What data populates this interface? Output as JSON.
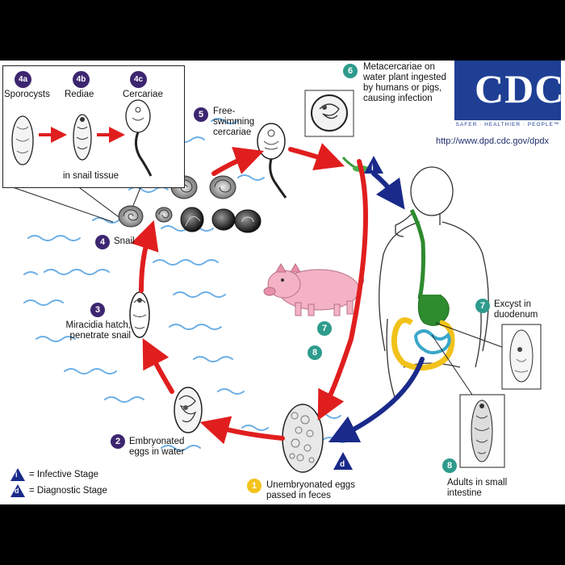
{
  "logo": {
    "text": "CDC",
    "tagline": "SAFER · HEALTHIER · PEOPLE™"
  },
  "url": "http://www.dpd.cdc.gov/dpdx",
  "inset": {
    "a": {
      "num": "4a",
      "label": "Sporocysts"
    },
    "b": {
      "num": "4b",
      "label": "Rediae"
    },
    "c": {
      "num": "4c",
      "label": "Cercariae"
    },
    "caption": "in snail tissue"
  },
  "steps": {
    "s1": {
      "num": "1",
      "label": "Unembryonated eggs passed in feces"
    },
    "s2": {
      "num": "2",
      "label": "Embryonated eggs in water"
    },
    "s3": {
      "num": "3",
      "label": "Miracidia hatch, penetrate snail"
    },
    "s4": {
      "num": "4",
      "label": "Snail"
    },
    "s5": {
      "num": "5",
      "label": "Free-swimming cercariae"
    },
    "s6": {
      "num": "6",
      "label": "Metacercariae on water plant ingested by humans or pigs, causing infection"
    },
    "s7": {
      "num": "7",
      "label": "Excyst in duodenum"
    },
    "s8": {
      "num": "8",
      "label": "Adults in small intestine"
    },
    "pig7": {
      "num": "7"
    },
    "pig8": {
      "num": "8"
    }
  },
  "legend": {
    "infective": {
      "symbol": "i",
      "label": "= Infective Stage"
    },
    "diagnostic": {
      "symbol": "d",
      "label": "= Diagnostic Stage"
    }
  },
  "markers": {
    "infective": "i",
    "diagnostic": "d"
  },
  "colors": {
    "cycle_arrow": "#e01e1e",
    "human_arrow": "#1a2a8a",
    "water": "#6aaee6",
    "gut": "#2e8b2e",
    "intestine": "#3aa7c9",
    "colon": "#f2c21b",
    "step_purple": "#3d2670",
    "step_teal": "#2e9b8c",
    "step_yellow": "#f3c21b",
    "logo_blue": "#1f3f95"
  }
}
